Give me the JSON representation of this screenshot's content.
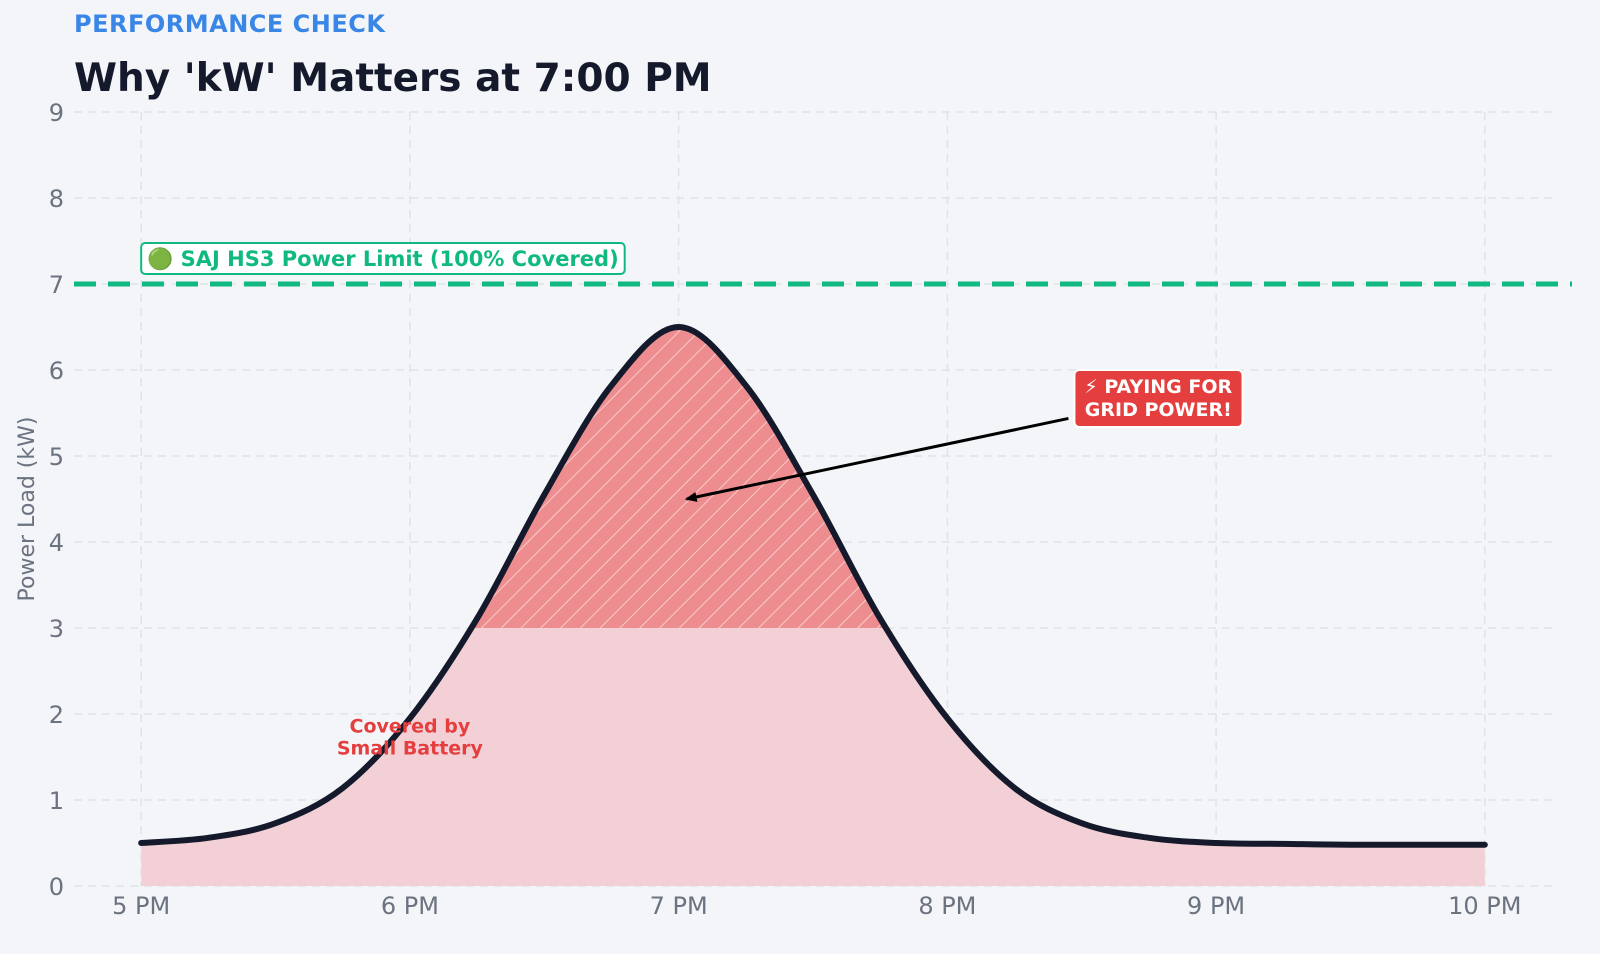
{
  "header": {
    "eyebrow": "PERFORMANCE CHECK",
    "title": "Why 'kW' Matters at 7:00 PM"
  },
  "chart_data": {
    "type": "area",
    "x_ticks": [
      "5 PM",
      "6 PM",
      "7 PM",
      "8 PM",
      "9 PM",
      "10 PM"
    ],
    "x_hours": [
      17,
      18,
      19,
      20,
      21,
      22
    ],
    "xlim": [
      16.75,
      22.25
    ],
    "ylim": [
      0,
      9
    ],
    "y_ticks": [
      0,
      1,
      2,
      3,
      4,
      5,
      6,
      7,
      8,
      9
    ],
    "ylabel": "Power Load (kW)",
    "grid": true,
    "load_curve": {
      "x": [
        17.0,
        17.25,
        17.5,
        17.75,
        18.0,
        18.25,
        18.5,
        18.75,
        19.0,
        19.25,
        19.5,
        19.75,
        20.0,
        20.25,
        20.5,
        20.75,
        21.0,
        21.25,
        21.5,
        22.0
      ],
      "y": [
        0.5,
        0.56,
        0.73,
        1.14,
        1.95,
        3.11,
        4.55,
        5.82,
        6.5,
        5.82,
        4.55,
        3.11,
        1.95,
        1.14,
        0.73,
        0.56,
        0.5,
        0.49,
        0.48,
        0.48
      ]
    },
    "battery_limit_kw": 3,
    "inverter_limit_kw": 7,
    "annotations": {
      "limit_label": "🟢 SAJ HS3 Power Limit (100% Covered)",
      "grid_callout": [
        "⚡ PAYING FOR",
        "GRID POWER!"
      ],
      "grid_callout_target": {
        "x": 19.03,
        "y": 4.5
      },
      "grid_callout_anchor": {
        "x": 20.45,
        "y": 5.5
      },
      "battery_label": [
        "Covered by",
        "Small Battery"
      ],
      "battery_label_pos": {
        "x": 18.0,
        "y": 1.6
      }
    },
    "colors": {
      "curve": "#141a2b",
      "battery_fill": "#f3d0d5",
      "grid_fill": "#ee8d8f",
      "limit_line": "#10b981",
      "callout_bg": "#e53e3e",
      "covered_text": "#e53e3e"
    }
  }
}
